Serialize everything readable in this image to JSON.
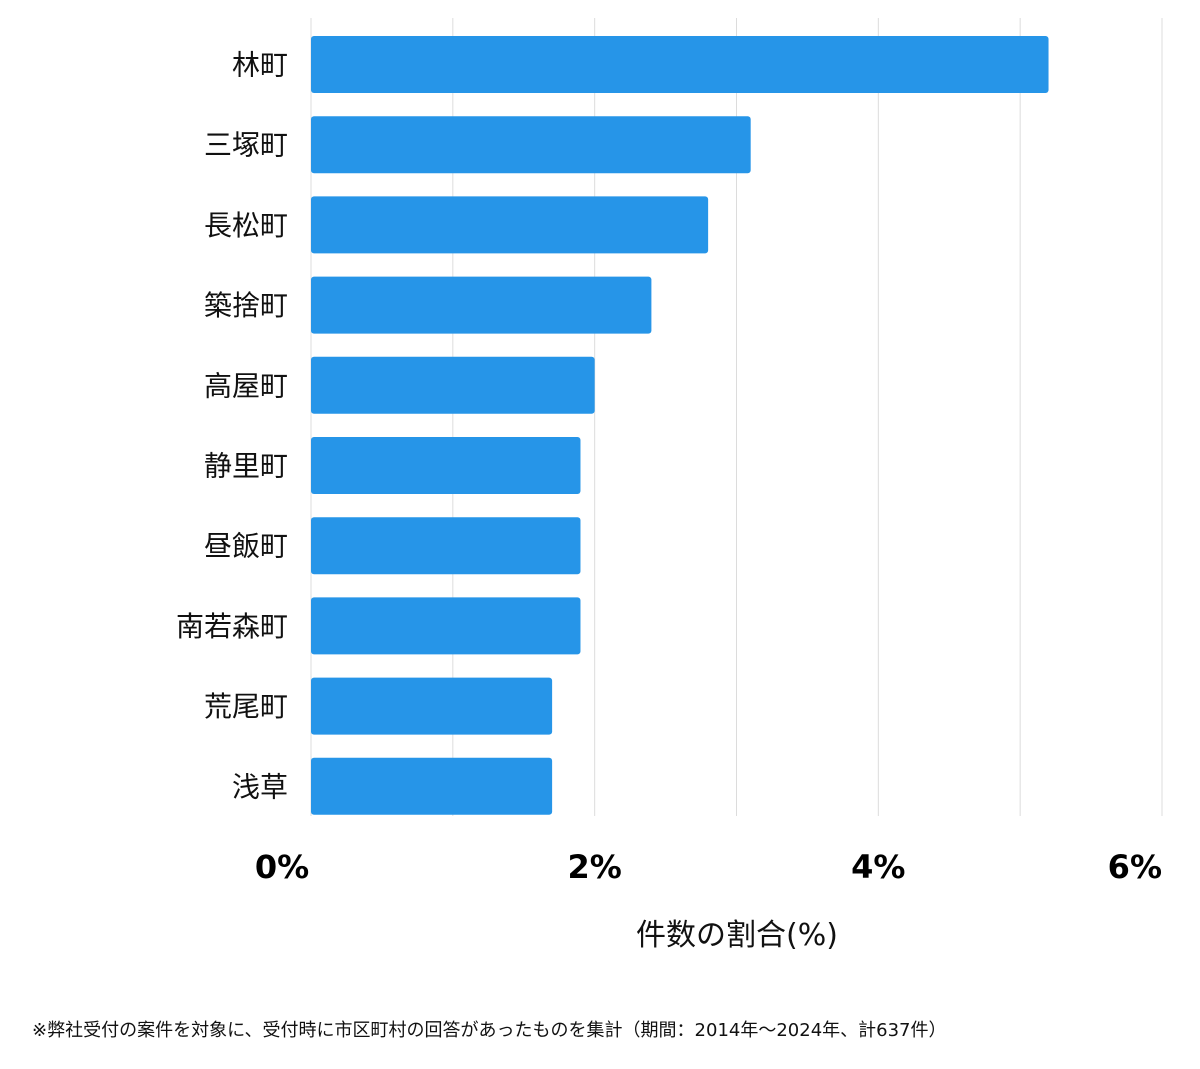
{
  "chart_data": {
    "type": "bar",
    "orientation": "horizontal",
    "categories": [
      "林町",
      "三塚町",
      "長松町",
      "築捨町",
      "高屋町",
      "静里町",
      "昼飯町",
      "南若森町",
      "荒尾町",
      "浅草"
    ],
    "values": [
      5.2,
      3.1,
      2.8,
      2.4,
      2.0,
      1.9,
      1.9,
      1.9,
      1.7,
      1.7
    ],
    "xlabel": "件数の割合(%)",
    "xlim": [
      0,
      6
    ],
    "xticks": [
      0,
      2,
      4,
      6
    ],
    "xtick_labels": [
      "0%",
      "2%",
      "4%",
      "6%"
    ],
    "grid": true,
    "bar_color": "#2695e8"
  },
  "footnote": "※弊社受付の案件を対象に、受付時に市区町村の回答があったものを集計（期間：2014年～2024年、計637件）"
}
